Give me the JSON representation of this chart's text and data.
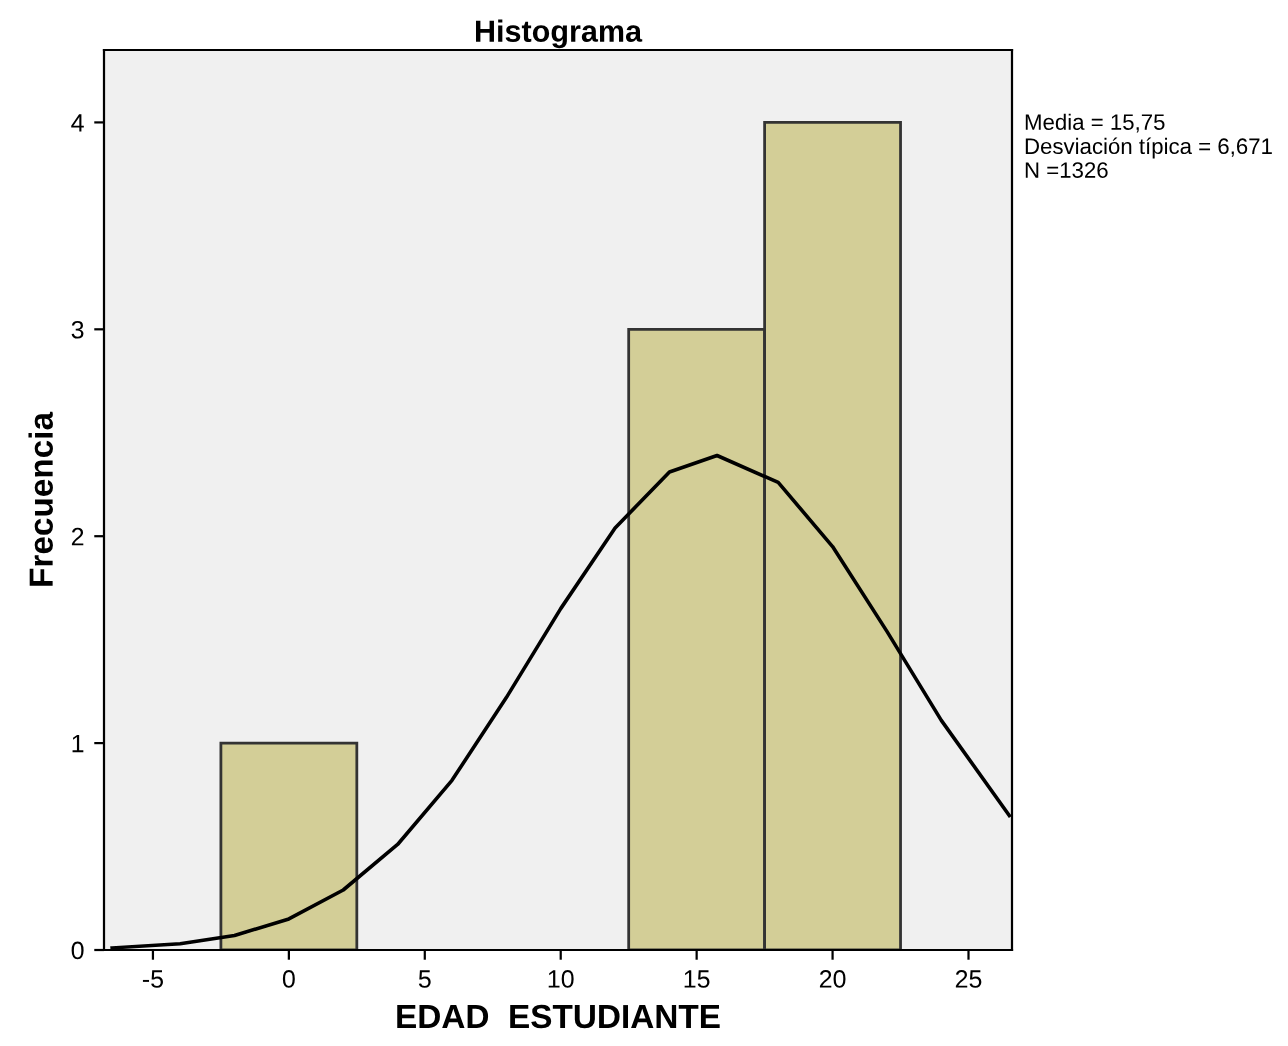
{
  "chart_data": {
    "type": "histogram",
    "title": "Histograma",
    "xlabel": "EDAD  ESTUDIANTE",
    "ylabel": "Frecuencia",
    "bins": [
      -2.5,
      2.5,
      7.5,
      12.5,
      17.5,
      22.5
    ],
    "values": [
      1,
      0,
      0,
      3,
      4
    ],
    "color": "#d3ce97",
    "series": [
      {
        "type": "line",
        "color": "#000000",
        "x": [
          -6.5,
          -4,
          -2,
          0,
          2,
          4,
          6,
          8,
          10,
          12,
          14,
          15.75,
          18,
          20,
          22,
          24,
          26.5
        ],
        "values": [
          0.01,
          0.03,
          0.07,
          0.15,
          0.29,
          0.51,
          0.82,
          1.22,
          1.65,
          2.04,
          2.31,
          2.39,
          2.26,
          1.95,
          1.54,
          1.11,
          0.65
        ]
      }
    ],
    "xlim": [
      -6.8,
      26.6
    ],
    "ylim": [
      0,
      4.35
    ],
    "xticks": [
      -5,
      0,
      5,
      10,
      15,
      20,
      25
    ],
    "yticks": [
      0,
      1,
      2,
      3,
      4
    ],
    "grid": false,
    "legend": false,
    "annotations": [
      "Media = 15,75",
      "Desviación típica = 6,671",
      "N =1326"
    ]
  }
}
